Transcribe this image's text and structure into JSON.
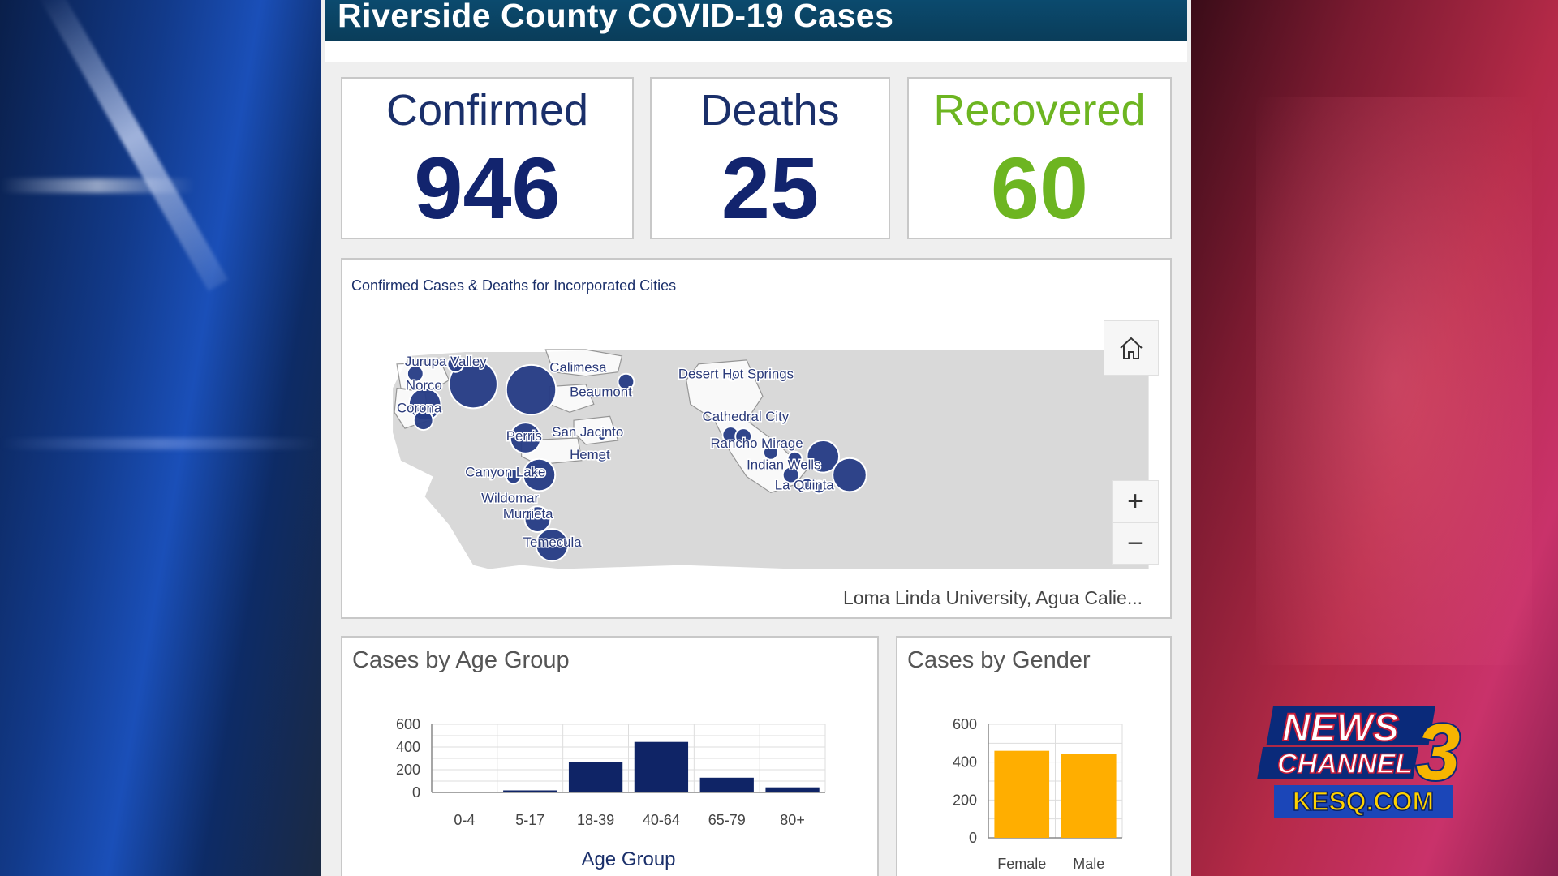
{
  "header": {
    "title": "Riverside County COVID-19 Cases"
  },
  "kpis": [
    {
      "label": "Confirmed",
      "value": "946"
    },
    {
      "label": "Deaths",
      "value": "25"
    },
    {
      "label": "Recovered",
      "value": "60"
    }
  ],
  "map": {
    "title": "Confirmed Cases & Deaths for Incorporated Cities",
    "attribution": "Loma Linda University, Agua Calie...",
    "home_icon": "home-icon",
    "zoom_in_label": "+",
    "zoom_out_label": "−",
    "cities": [
      "Jurupa Valley",
      "Norco",
      "Corona",
      "Calimesa",
      "Beaumont",
      "Perris",
      "San Jacinto",
      "Hemet",
      "Canyon Lake",
      "Wildomar",
      "Murrieta",
      "Temecula",
      "Desert Hot Springs",
      "Cathedral City",
      "Rancho Mirage",
      "Indian Wells",
      "La Quinta"
    ]
  },
  "colors": {
    "accent_navy": "#12246e",
    "recovered_green": "#6db521",
    "header_bg": "#0b4a6e",
    "bar_navy": "#0f2466",
    "bar_orange": "#ffae00"
  },
  "age_chart": {
    "title": "Cases by Age Group",
    "xlabel": "Age Group"
  },
  "gender_chart": {
    "title": "Cases by Gender"
  },
  "chart_data": [
    {
      "type": "bar",
      "title": "Cases by Age Group",
      "xlabel": "Age Group",
      "ylabel": "",
      "categories": [
        "0-4",
        "5-17",
        "18-39",
        "40-64",
        "65-79",
        "80+"
      ],
      "values": [
        3,
        18,
        265,
        445,
        130,
        45
      ],
      "ylim": [
        0,
        600
      ],
      "yticks": [
        "0",
        "200",
        "400",
        "600"
      ],
      "grid": true
    },
    {
      "type": "bar",
      "title": "Cases by Gender",
      "xlabel": "",
      "ylabel": "",
      "categories": [
        "Female",
        "Male"
      ],
      "values": [
        460,
        445
      ],
      "ylim": [
        0,
        600
      ],
      "yticks": [
        "0",
        "200",
        "400",
        "600"
      ],
      "grid": true
    }
  ],
  "logo": {
    "line1": "NEWS",
    "line2": "CHANNEL",
    "number": "3",
    "site": "KESQ.COM"
  }
}
